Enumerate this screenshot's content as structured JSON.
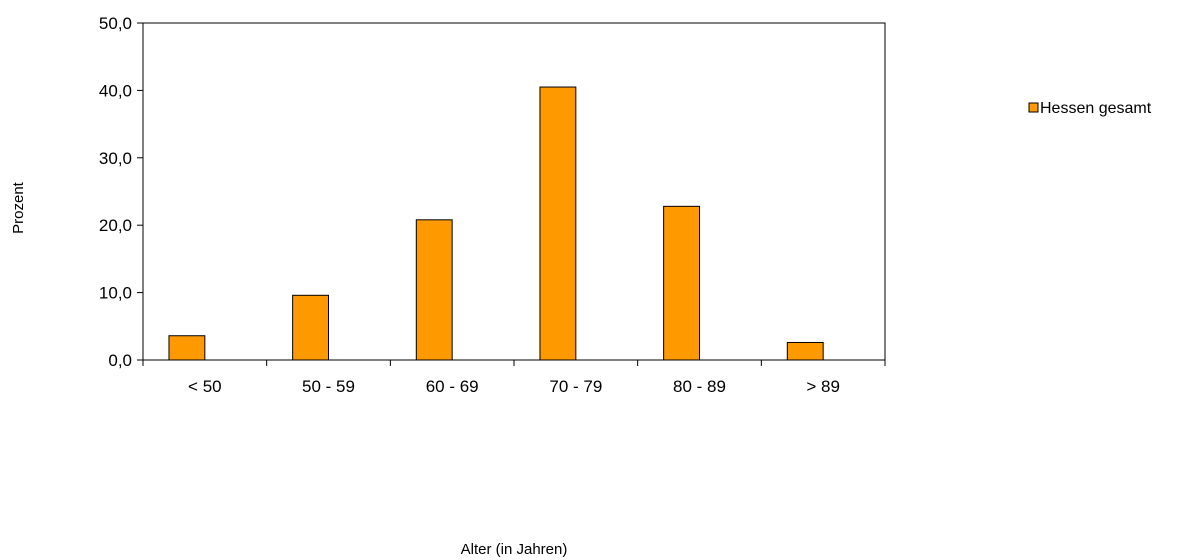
{
  "chart_data": {
    "type": "bar",
    "categories": [
      "< 50",
      "50 - 59",
      "60 - 69",
      "70 - 79",
      "80 - 89",
      "> 89"
    ],
    "series": [
      {
        "name": "Hessen gesamt",
        "values": [
          3.6,
          9.6,
          20.8,
          40.5,
          22.8,
          2.6
        ],
        "color": "#ff9900"
      }
    ],
    "ylim": [
      0,
      50
    ],
    "yticks": [
      "0,0",
      "10,0",
      "20,0",
      "30,0",
      "40,0",
      "50,0"
    ],
    "ytick_values": [
      0,
      10,
      20,
      30,
      40,
      50
    ],
    "xlabel": "Alter (in Jahren)",
    "ylabel": "Prozent",
    "legend": "right",
    "grid": false
  }
}
